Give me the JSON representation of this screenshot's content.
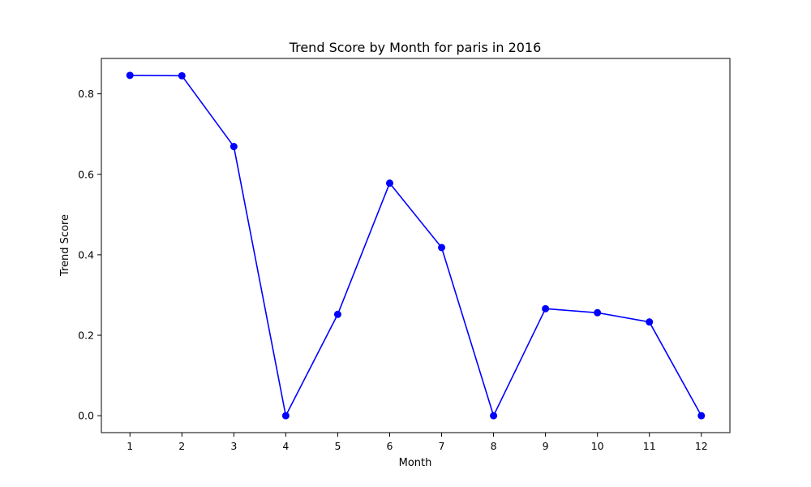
{
  "chart_data": {
    "type": "line",
    "title": "Trend Score by Month for paris in 2016",
    "xlabel": "Month",
    "ylabel": "Trend Score",
    "x": [
      1,
      2,
      3,
      4,
      5,
      6,
      7,
      8,
      9,
      10,
      11,
      12
    ],
    "x_tick_labels": [
      "1",
      "2",
      "3",
      "4",
      "5",
      "6",
      "7",
      "8",
      "9",
      "10",
      "11",
      "12"
    ],
    "y_ticks": [
      0.0,
      0.2,
      0.4,
      0.6,
      0.8
    ],
    "y_tick_labels": [
      "0.0",
      "0.2",
      "0.4",
      "0.6",
      "0.8"
    ],
    "xlim": [
      0.45,
      12.55
    ],
    "ylim": [
      -0.042,
      0.888
    ],
    "series": [
      {
        "values": [
          0.846,
          0.845,
          0.669,
          0.0,
          0.252,
          0.578,
          0.418,
          0.0,
          0.266,
          0.256,
          0.233,
          0.0
        ],
        "color": "#0000ff",
        "marker": "circle"
      }
    ],
    "grid": false,
    "legend": "none"
  }
}
